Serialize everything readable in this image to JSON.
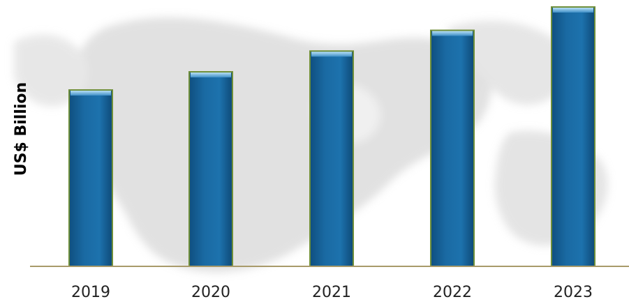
{
  "chart_data": {
    "type": "bar",
    "categories": [
      "2019",
      "2020",
      "2021",
      "2022",
      "2023"
    ],
    "values": [
      68,
      75,
      83,
      91,
      100
    ],
    "title": "",
    "xlabel": "",
    "ylabel": "US$ Billion",
    "ylim": [
      0,
      100
    ],
    "grid": false,
    "legend": "none",
    "colors": {
      "bar_fill": "#1a6aa3",
      "bar_border": "#6f8f3a",
      "bar_top": "#8fc4e6",
      "axis_line": "#b0a070",
      "background_map": "#d6d6d6"
    }
  }
}
